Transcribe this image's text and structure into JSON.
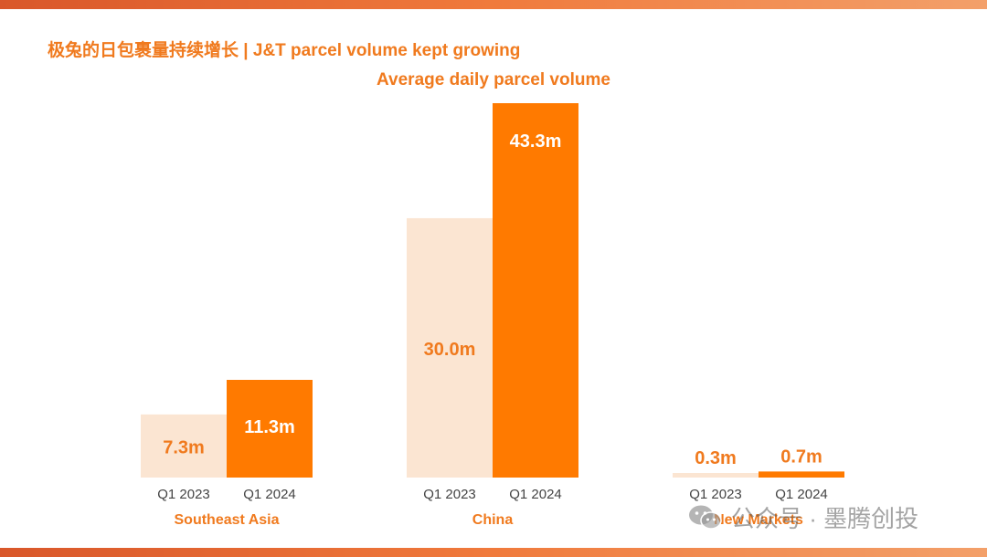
{
  "slide": {
    "title": "极兔的日包裹量持续增长 |  J&T parcel volume kept growing"
  },
  "chart_data": {
    "type": "bar",
    "title": "Average daily parcel volume",
    "unit": "m",
    "groups": [
      {
        "name": "Southeast Asia",
        "bars": [
          {
            "period": "Q1 2023",
            "value": 7.3,
            "label": "7.3m"
          },
          {
            "period": "Q1 2024",
            "value": 11.3,
            "label": "11.3m"
          }
        ]
      },
      {
        "name": "China",
        "bars": [
          {
            "period": "Q1 2023",
            "value": 30.0,
            "label": "30.0m"
          },
          {
            "period": "Q1 2024",
            "value": 43.3,
            "label": "43.3m"
          }
        ]
      },
      {
        "name": "New Markets",
        "bars": [
          {
            "period": "Q1 2023",
            "value": 0.3,
            "label": "0.3m"
          },
          {
            "period": "Q1 2024",
            "value": 0.7,
            "label": "0.7m"
          }
        ]
      }
    ],
    "colors": {
      "Q1 2023": "#fbe5d2",
      "Q1 2024": "#ff7a00",
      "text": "#f07a1e"
    }
  },
  "watermark": {
    "icon": "wechat-icon",
    "text": "公众号 · 墨腾创投"
  }
}
